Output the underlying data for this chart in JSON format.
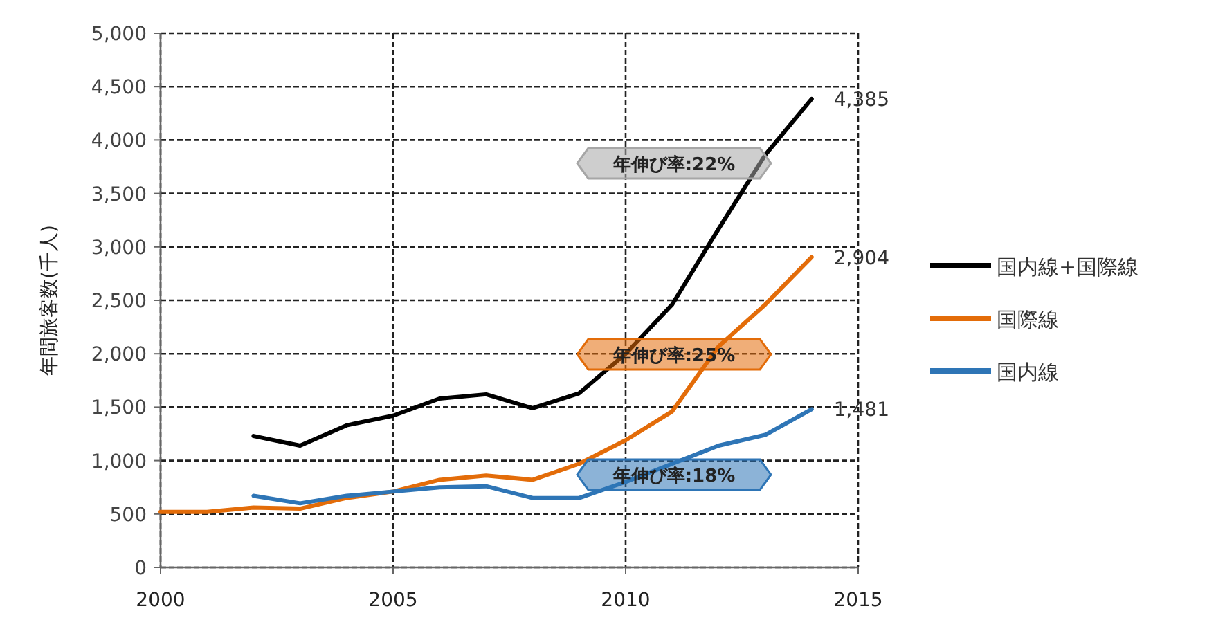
{
  "chart_data": {
    "type": "line",
    "ylabel": "年間旅客数(千人)",
    "x": [
      2000,
      2001,
      2002,
      2003,
      2004,
      2005,
      2006,
      2007,
      2008,
      2009,
      2010,
      2011,
      2012,
      2013,
      2014
    ],
    "series": [
      {
        "name": "国内線+国際線",
        "color": "#000000",
        "values": [
          null,
          null,
          1230,
          1140,
          1330,
          1420,
          1580,
          1620,
          1490,
          1630,
          2000,
          2460,
          3170,
          3860,
          4385
        ],
        "value_labels": [
          null,
          null,
          null,
          null,
          null,
          null,
          null,
          null,
          null,
          null,
          null,
          null,
          null,
          null,
          "4,385"
        ]
      },
      {
        "name": "国際線",
        "color": "#e36c09",
        "values": [
          520,
          520,
          560,
          550,
          650,
          710,
          820,
          860,
          820,
          970,
          1190,
          1460,
          2070,
          2460,
          2904
        ],
        "value_labels": [
          null,
          null,
          null,
          null,
          null,
          null,
          null,
          null,
          null,
          null,
          null,
          null,
          null,
          null,
          "2,904"
        ]
      },
      {
        "name": "国内線",
        "color": "#2e75b6",
        "values": [
          null,
          null,
          670,
          600,
          670,
          710,
          750,
          760,
          650,
          650,
          800,
          970,
          1140,
          1240,
          1481
        ],
        "value_labels": [
          null,
          null,
          null,
          null,
          null,
          null,
          null,
          null,
          null,
          null,
          null,
          null,
          null,
          null,
          "1,481"
        ]
      }
    ],
    "annotations": [
      "年伸び率:22%",
      "年伸び率:25%",
      "年伸び率:18%"
    ],
    "xlim": [
      2000,
      2015
    ],
    "xticks": [
      2000,
      2005,
      2010,
      2015
    ],
    "ylim": [
      0,
      5000
    ],
    "yticks": [
      {
        "value": 0,
        "label": "0"
      },
      {
        "value": 500,
        "label": "500"
      },
      {
        "value": 1000,
        "label": "1,000"
      },
      {
        "value": 1500,
        "label": "1,500"
      },
      {
        "value": 2000,
        "label": "2,000"
      },
      {
        "value": 2500,
        "label": "2,500"
      },
      {
        "value": 3000,
        "label": "3,000"
      },
      {
        "value": 3500,
        "label": "3,500"
      },
      {
        "value": 4000,
        "label": "4,000"
      },
      {
        "value": 4500,
        "label": "4,500"
      },
      {
        "value": 5000,
        "label": "5,000"
      }
    ],
    "grid": true,
    "legend": "right",
    "line_style": "solid",
    "marker": "none"
  }
}
